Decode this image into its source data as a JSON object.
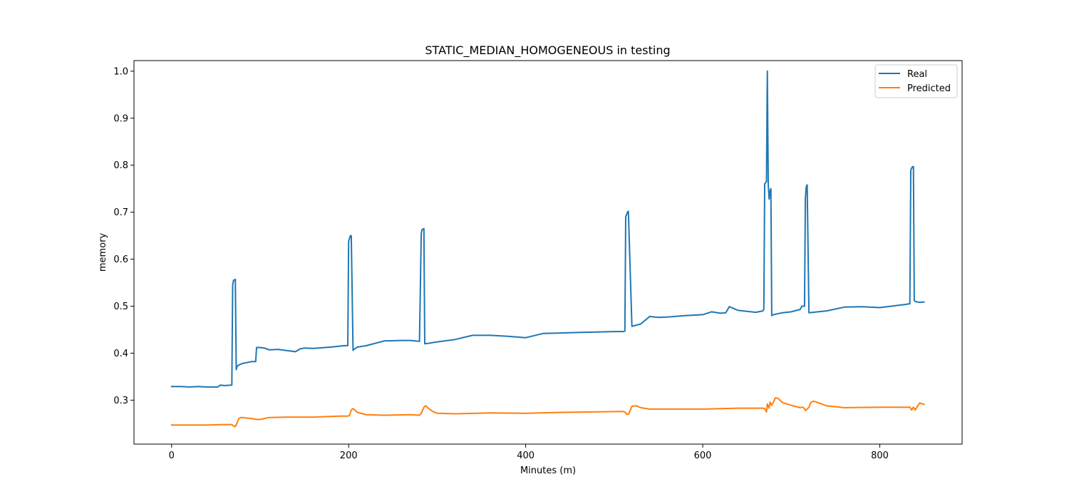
{
  "chart_data": {
    "type": "line",
    "title": "STATIC_MEDIAN_HOMOGENEOUS in testing",
    "xlabel": "Minutes (m)",
    "ylabel": "memory",
    "xlim": [
      -42.5,
      893
    ],
    "ylim": [
      0.2065,
      1.0225
    ],
    "xticks": [
      0,
      200,
      400,
      600,
      800
    ],
    "yticks": [
      0.3,
      0.4,
      0.5,
      0.6,
      0.7,
      0.8,
      0.9,
      1.0
    ],
    "xtick_labels": [
      "0",
      "200",
      "400",
      "600",
      "800"
    ],
    "ytick_labels": [
      "0.3",
      "0.4",
      "0.5",
      "0.6",
      "0.7",
      "0.8",
      "0.9",
      "1.0"
    ],
    "grid": false,
    "legend_position": "top-right",
    "series": [
      {
        "name": "Real",
        "color": "#1f77b4",
        "x": [
          0,
          10,
          20,
          30,
          40,
          52,
          55,
          60,
          68,
          69,
          70,
          72,
          73,
          74,
          76,
          80,
          90,
          95,
          96,
          98,
          100,
          105,
          110,
          120,
          140,
          145,
          150,
          160,
          180,
          195,
          199,
          200,
          202,
          203,
          205,
          206,
          210,
          220,
          240,
          260,
          270,
          280,
          282,
          283,
          285,
          286,
          290,
          300,
          320,
          340,
          360,
          380,
          400,
          420,
          440,
          460,
          480,
          500,
          510,
          512,
          513,
          515,
          516,
          520,
          530,
          540,
          550,
          560,
          580,
          600,
          610,
          620,
          626,
          630,
          640,
          660,
          668,
          669,
          670,
          672,
          673,
          674,
          675,
          676,
          677,
          678,
          679,
          680,
          690,
          700,
          710,
          712,
          713,
          715,
          716,
          717,
          718,
          720,
          740,
          760,
          780,
          800,
          830,
          833,
          834,
          835,
          837,
          838,
          839,
          840,
          845,
          850
        ],
        "y": [
          0.329,
          0.329,
          0.328,
          0.329,
          0.328,
          0.328,
          0.332,
          0.331,
          0.332,
          0.545,
          0.555,
          0.557,
          0.365,
          0.372,
          0.375,
          0.378,
          0.382,
          0.382,
          0.412,
          0.412,
          0.412,
          0.411,
          0.407,
          0.408,
          0.403,
          0.409,
          0.411,
          0.41,
          0.413,
          0.416,
          0.416,
          0.638,
          0.65,
          0.65,
          0.406,
          0.408,
          0.413,
          0.416,
          0.426,
          0.427,
          0.427,
          0.425,
          0.655,
          0.663,
          0.665,
          0.42,
          0.421,
          0.424,
          0.429,
          0.438,
          0.438,
          0.436,
          0.433,
          0.442,
          0.443,
          0.444,
          0.445,
          0.446,
          0.446,
          0.447,
          0.69,
          0.7,
          0.702,
          0.457,
          0.462,
          0.478,
          0.476,
          0.477,
          0.48,
          0.482,
          0.488,
          0.485,
          0.486,
          0.499,
          0.491,
          0.487,
          0.49,
          0.494,
          0.76,
          0.765,
          1.0,
          0.76,
          0.728,
          0.745,
          0.75,
          0.48,
          0.481,
          0.482,
          0.486,
          0.488,
          0.493,
          0.5,
          0.5,
          0.5,
          0.73,
          0.755,
          0.758,
          0.486,
          0.49,
          0.498,
          0.499,
          0.497,
          0.504,
          0.505,
          0.505,
          0.79,
          0.797,
          0.797,
          0.512,
          0.51,
          0.508,
          0.509
        ]
      },
      {
        "name": "Predicted",
        "color": "#ff7f0e",
        "x": [
          0,
          20,
          40,
          60,
          68,
          70,
          72,
          74,
          76,
          78,
          80,
          90,
          96,
          100,
          110,
          130,
          160,
          190,
          199,
          201,
          203,
          205,
          207,
          210,
          220,
          240,
          270,
          280,
          282,
          285,
          287,
          290,
          295,
          300,
          320,
          360,
          400,
          440,
          480,
          510,
          512,
          514,
          516,
          518,
          520,
          525,
          530,
          540,
          560,
          600,
          640,
          668,
          670,
          672,
          673,
          675,
          676,
          678,
          680,
          682,
          685,
          690,
          700,
          710,
          713,
          715,
          716,
          718,
          720,
          722,
          725,
          730,
          740,
          760,
          800,
          830,
          834,
          836,
          838,
          840,
          845,
          850
        ],
        "y": [
          0.247,
          0.247,
          0.247,
          0.248,
          0.248,
          0.245,
          0.244,
          0.252,
          0.261,
          0.263,
          0.263,
          0.261,
          0.259,
          0.259,
          0.263,
          0.264,
          0.264,
          0.266,
          0.266,
          0.268,
          0.279,
          0.282,
          0.279,
          0.274,
          0.269,
          0.268,
          0.269,
          0.268,
          0.272,
          0.285,
          0.288,
          0.283,
          0.276,
          0.272,
          0.271,
          0.273,
          0.272,
          0.274,
          0.275,
          0.276,
          0.275,
          0.27,
          0.27,
          0.278,
          0.287,
          0.288,
          0.284,
          0.281,
          0.281,
          0.281,
          0.283,
          0.283,
          0.282,
          0.275,
          0.292,
          0.283,
          0.296,
          0.289,
          0.296,
          0.305,
          0.304,
          0.295,
          0.289,
          0.284,
          0.285,
          0.282,
          0.278,
          0.281,
          0.285,
          0.295,
          0.298,
          0.295,
          0.288,
          0.284,
          0.285,
          0.285,
          0.285,
          0.279,
          0.285,
          0.279,
          0.294,
          0.291
        ]
      }
    ]
  }
}
